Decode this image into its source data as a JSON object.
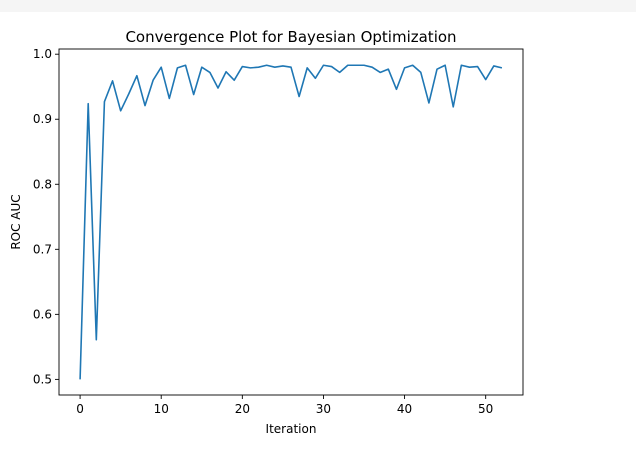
{
  "chart_data": {
    "type": "line",
    "title": "Convergence Plot for Bayesian Optimization",
    "xlabel": "Iteration",
    "ylabel": "ROC AUC",
    "xlim": [
      -2.6,
      54.6
    ],
    "ylim": [
      0.476,
      1.008
    ],
    "xticks": [
      0,
      10,
      20,
      30,
      40,
      50
    ],
    "yticks": [
      0.5,
      0.6,
      0.7,
      0.8,
      0.9,
      1.0
    ],
    "ytick_labels": [
      "0.5",
      "0.6",
      "0.7",
      "0.8",
      "0.9",
      "1.0"
    ],
    "grid": false,
    "series": [
      {
        "color": "#1f77b4",
        "x": [
          0,
          1,
          2,
          3,
          4,
          5,
          6,
          7,
          8,
          9,
          10,
          11,
          12,
          13,
          14,
          15,
          16,
          17,
          18,
          19,
          20,
          21,
          22,
          23,
          24,
          25,
          26,
          27,
          28,
          29,
          30,
          31,
          32,
          33,
          34,
          35,
          36,
          37,
          38,
          39,
          40,
          41,
          42,
          43,
          44,
          45,
          46,
          47,
          48,
          49,
          50,
          51,
          52
        ],
        "y": [
          0.5,
          0.924,
          0.561,
          0.927,
          0.959,
          0.913,
          0.939,
          0.967,
          0.921,
          0.96,
          0.98,
          0.932,
          0.979,
          0.983,
          0.938,
          0.98,
          0.972,
          0.948,
          0.973,
          0.96,
          0.981,
          0.979,
          0.98,
          0.983,
          0.98,
          0.982,
          0.98,
          0.935,
          0.979,
          0.963,
          0.983,
          0.981,
          0.972,
          0.983,
          0.983,
          0.983,
          0.98,
          0.972,
          0.977,
          0.946,
          0.979,
          0.983,
          0.972,
          0.925,
          0.977,
          0.983,
          0.919,
          0.983,
          0.98,
          0.981,
          0.961,
          0.982,
          0.979
        ]
      }
    ]
  }
}
